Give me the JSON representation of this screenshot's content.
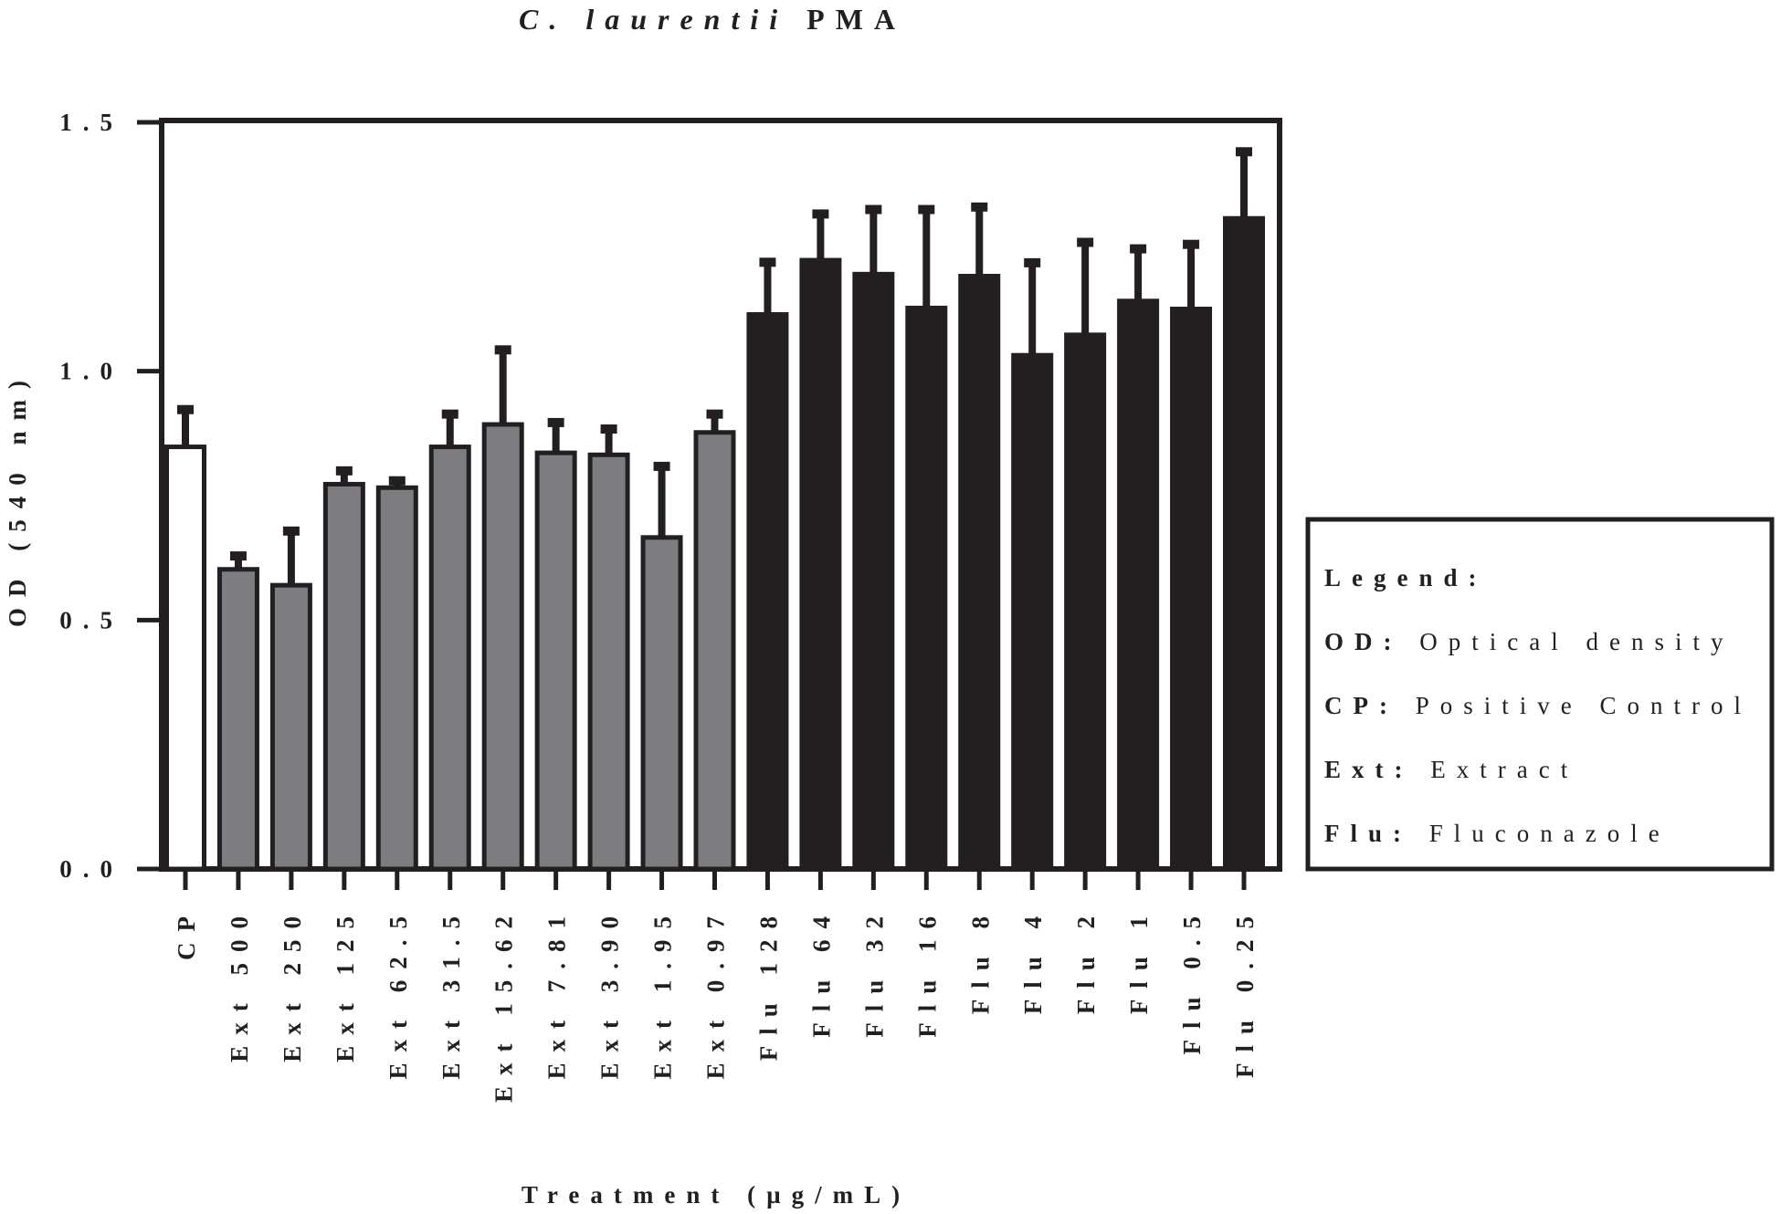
{
  "chart_data": {
    "type": "bar",
    "title": {
      "italic": "C. laurentii",
      "rest": "PMA"
    },
    "ylabel": "OD (540 nm)",
    "xlabel": "Treatment (µg/mL)",
    "categories": [
      "CP",
      "Ext 500",
      "Ext 250",
      "Ext 125",
      "Ext 62.5",
      "Ext 31.5",
      "Ext 15.62",
      "Ext 7.81",
      "Ext 3.90",
      "Ext 1.95",
      "Ext 0.97",
      "Flu 128",
      "Flu 64",
      "Flu 32",
      "Flu 16",
      "Flu 8",
      "Flu 4",
      "Flu 2",
      "Flu 1",
      "Flu 0.5",
      "Flu 0.25"
    ],
    "values": [
      0.848,
      0.602,
      0.57,
      0.773,
      0.766,
      0.848,
      0.893,
      0.836,
      0.832,
      0.666,
      0.877,
      1.114,
      1.223,
      1.195,
      1.127,
      1.191,
      1.032,
      1.073,
      1.141,
      1.125,
      1.307
    ],
    "errors": [
      0.084,
      0.036,
      0.118,
      0.036,
      0.023,
      0.075,
      0.159,
      0.07,
      0.061,
      0.152,
      0.046,
      0.114,
      0.102,
      0.139,
      0.207,
      0.148,
      0.195,
      0.195,
      0.114,
      0.139,
      0.143
    ],
    "colors": [
      "#ffffff",
      "#7d7d81",
      "#7d7d81",
      "#7d7d81",
      "#7d7d81",
      "#7d7d81",
      "#7d7d81",
      "#7d7d81",
      "#7d7d81",
      "#7d7d81",
      "#7d7d81",
      "#231f20",
      "#231f20",
      "#231f20",
      "#231f20",
      "#231f20",
      "#231f20",
      "#231f20",
      "#231f20",
      "#231f20",
      "#231f20"
    ],
    "ylim": [
      0,
      1.5
    ],
    "yticks": [
      {
        "value": 0,
        "label": "0.0"
      },
      0.5,
      {
        "value": 1,
        "label": "1.0"
      },
      1.5
    ],
    "legend_box": {
      "heading": "Legend:",
      "items": [
        {
          "term": "OD:",
          "definition": "Optical density"
        },
        {
          "term": "CP:",
          "definition": "Positive Control"
        },
        {
          "term": "Ext:",
          "definition": "Extract"
        },
        {
          "term": "Flu:",
          "definition": "Fluconazole"
        }
      ]
    }
  }
}
